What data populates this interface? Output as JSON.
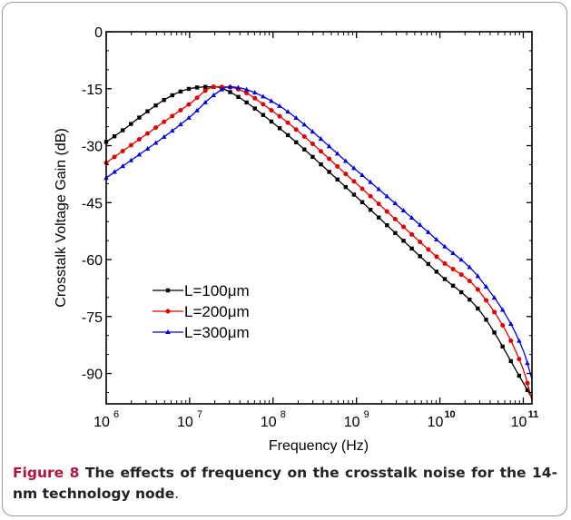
{
  "chart_data": {
    "type": "line",
    "xlabel": "Frequency (Hz)",
    "ylabel": "Crosstalk Voltage Gain (dB)",
    "xscale": "log",
    "xlim": [
      1000000,
      127000000000
    ],
    "ylim": [
      -98,
      0
    ],
    "x_ticks": [
      {
        "base": "10",
        "exp": "6"
      },
      {
        "base": "10",
        "exp": "7"
      },
      {
        "base": "10",
        "exp": "8"
      },
      {
        "base": "10",
        "exp": "9"
      },
      {
        "base": "10",
        "exp": "10"
      },
      {
        "base": "10",
        "exp": "11"
      }
    ],
    "y_ticks": [
      "0",
      "-15",
      "-30",
      "-45",
      "-60",
      "-75",
      "-90"
    ],
    "legend_position": "lower-left",
    "x": [
      1000000,
      10000000,
      20000000,
      30000000,
      100000000,
      1000000000,
      10000000000,
      30000000000,
      100000000000,
      127000000000
    ],
    "series": [
      {
        "name": "L=100μm",
        "color": "#000000",
        "marker": "square",
        "values": [
          -29,
          -15,
          -14.5,
          -15.8,
          -24,
          -43.5,
          -64,
          -73.5,
          -92.5,
          -96.5
        ]
      },
      {
        "name": "L=200μm",
        "color": "#e00000",
        "marker": "circle",
        "values": [
          -34.5,
          -19,
          -14.5,
          -14.6,
          -21,
          -40,
          -60,
          -68.5,
          -89,
          -97
        ]
      },
      {
        "name": "L=300μm",
        "color": "#0000e0",
        "marker": "triangle",
        "values": [
          -38.5,
          -22.5,
          -16.5,
          -14.5,
          -18.5,
          -36.5,
          -55.5,
          -65,
          -84,
          -91.5
        ]
      }
    ]
  },
  "caption": {
    "label": "Figure 8",
    "text": " The effects of frequency on the crosstalk noise for the 14-nm technology node",
    "period": "."
  }
}
